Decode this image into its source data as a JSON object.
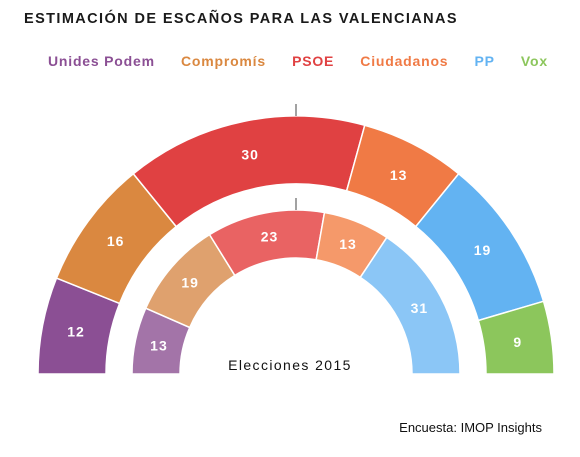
{
  "chart_data": {
    "type": "parliament-arc",
    "title": "ESTIMACIÓN DE ESCAÑOS PARA LAS VALENCIANAS",
    "legend": [
      {
        "name": "Unides Podem",
        "color": "#8B4F94"
      },
      {
        "name": "Compromís",
        "color": "#DA8840"
      },
      {
        "name": "PSOE",
        "color": "#E04142"
      },
      {
        "name": "Ciudadanos",
        "color": "#F07A45"
      },
      {
        "name": "PP",
        "color": "#63B3F2"
      },
      {
        "name": "Vox",
        "color": "#8CC65C"
      }
    ],
    "series": [
      {
        "name": "",
        "ring": "outer",
        "values": [
          {
            "party": "Unides Podem",
            "seats": 12,
            "color": "#8B4F94"
          },
          {
            "party": "Compromís",
            "seats": 16,
            "color": "#DA8840"
          },
          {
            "party": "PSOE",
            "seats": 30,
            "color": "#E04142"
          },
          {
            "party": "Ciudadanos",
            "seats": 13,
            "color": "#F07A45"
          },
          {
            "party": "PP",
            "seats": 19,
            "color": "#63B3F2"
          },
          {
            "party": "Vox",
            "seats": 9,
            "color": "#8CC65C"
          }
        ]
      },
      {
        "name": "Elecciones 2015",
        "ring": "inner",
        "values": [
          {
            "party": "Unides Podem",
            "seats": 13,
            "color": "#A374A8"
          },
          {
            "party": "Compromís",
            "seats": 19,
            "color": "#DFA16E"
          },
          {
            "party": "PSOE",
            "seats": 23,
            "color": "#E96363"
          },
          {
            "party": "Ciudadanos",
            "seats": 13,
            "color": "#F5996A"
          },
          {
            "party": "PP",
            "seats": 31,
            "color": "#8BC6F6"
          }
        ]
      }
    ],
    "majority_mark": "midpoint"
  },
  "caption": "Elecciones 2015",
  "source": "Encuesta: IMOP Insights"
}
